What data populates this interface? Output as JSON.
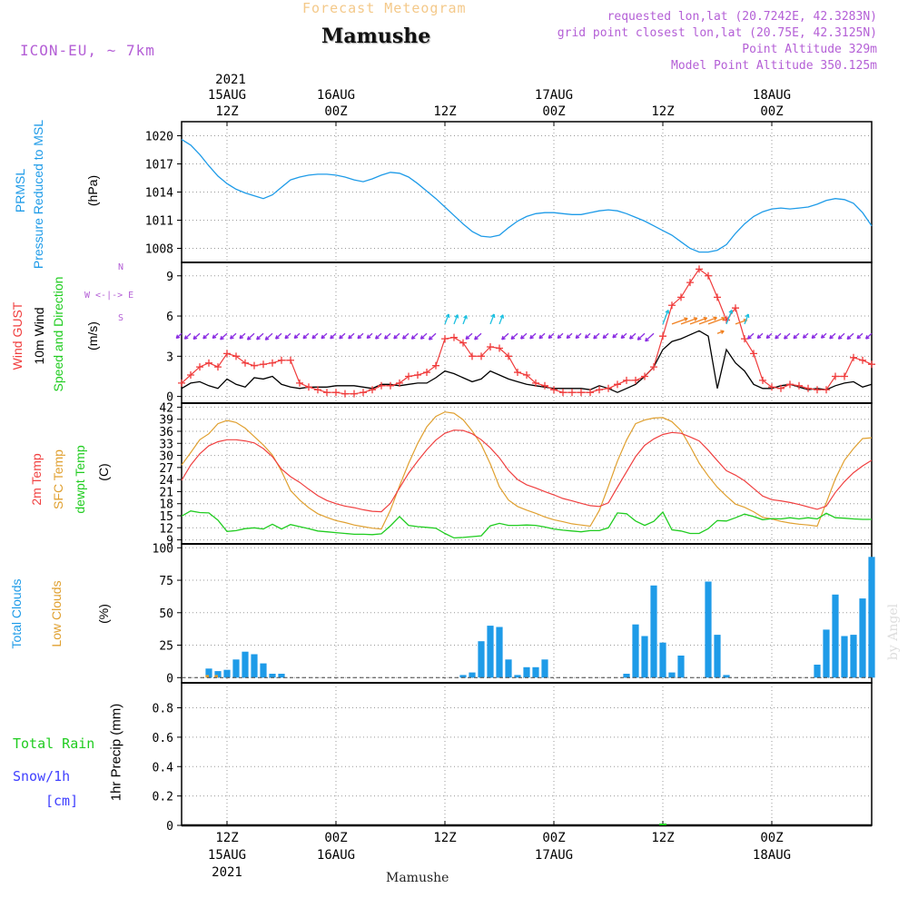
{
  "header": {
    "top_label": "Forecast Meteogram",
    "title": "Mamushe",
    "model": "ICON-EU, ~ 7km",
    "requested": "requested lon,lat (20.7242E, 42.3283N)",
    "closest": "grid point closest lon,lat (20.75E, 42.3125N)",
    "point_alt": "Point Altitude 329m",
    "model_alt": "Model Point Altitude 350.125m",
    "footer_title": "Mamushe",
    "watermark": "by Angel"
  },
  "time_axis": {
    "year": "2021",
    "ticks": [
      {
        "h": 12,
        "top": "15AUG",
        "bottom": "12Z"
      },
      {
        "h": 24,
        "top": "16AUG",
        "bottom": "00Z"
      },
      {
        "h": 36,
        "top": "",
        "bottom": "12Z"
      },
      {
        "h": 48,
        "top": "17AUG",
        "bottom": "00Z"
      },
      {
        "h": 60,
        "top": "",
        "bottom": "12Z"
      },
      {
        "h": 72,
        "top": "18AUG",
        "bottom": "00Z"
      }
    ],
    "bottom_ticks": [
      {
        "h": 12,
        "line1": "12Z",
        "line2": "15AUG",
        "line3": "2021"
      },
      {
        "h": 24,
        "line1": "00Z",
        "line2": "16AUG",
        "line3": ""
      },
      {
        "h": 36,
        "line1": "12Z",
        "line2": "",
        "line3": ""
      },
      {
        "h": 48,
        "line1": "00Z",
        "line2": "17AUG",
        "line3": ""
      },
      {
        "h": 60,
        "line1": "12Z",
        "line2": "",
        "line3": ""
      },
      {
        "h": 72,
        "line1": "00Z",
        "line2": "18AUG",
        "line3": ""
      }
    ],
    "hour_range": [
      7,
      83
    ]
  },
  "panel_labels": {
    "p1": [
      "PRMSL",
      "Pressure Reduced to MSL",
      "(hPa)"
    ],
    "p2": [
      "Wind GUST",
      "10m Wind",
      "Speed and Direction",
      "(m/s)"
    ],
    "p2_compass": [
      "N",
      "W <-|-> E",
      "S"
    ],
    "p3": [
      "2m Temp",
      "SFC Temp",
      "dewpt Temp",
      "(C)"
    ],
    "p4": [
      "Total Clouds",
      "Low Clouds",
      "(%)"
    ],
    "p5_left": [
      "Total Rain",
      "Snow/1h",
      "[cm]"
    ],
    "p5_axis": "1hr Precip (mm)"
  },
  "colors": {
    "pressure": "#1e9be8",
    "gust": "#f03c3c",
    "wind": "#000000",
    "t2m": "#f04040",
    "sfc": "#e0a030",
    "dewpt": "#20cc20",
    "clouds": "#1e9be8",
    "arrows_calm": "#8a2be2",
    "arrows_mid": "#1cc0e0",
    "arrows_strong": "#f08020",
    "rain": "#20cc20",
    "snow": "#4040ff"
  },
  "chart_data": [
    {
      "type": "line",
      "title": "PRMSL Pressure Reduced to MSL",
      "ylabel": "(hPa)",
      "yticks": [
        1008,
        1011,
        1014,
        1017,
        1020
      ],
      "ylim": [
        1006.5,
        1021.5
      ],
      "x": [
        7,
        8,
        9,
        10,
        11,
        12,
        13,
        14,
        15,
        16,
        17,
        18,
        19,
        20,
        21,
        22,
        23,
        24,
        25,
        26,
        27,
        28,
        29,
        30,
        31,
        32,
        33,
        34,
        35,
        36,
        37,
        38,
        39,
        40,
        41,
        42,
        43,
        44,
        45,
        46,
        47,
        48,
        49,
        50,
        51,
        52,
        53,
        54,
        55,
        56,
        57,
        58,
        59,
        60,
        61,
        62,
        63,
        64,
        65,
        66,
        67,
        68,
        69,
        70,
        71,
        72,
        73,
        74,
        75,
        76,
        77,
        78,
        79,
        80,
        81,
        82,
        83
      ],
      "series": [
        {
          "values": [
            1019.6,
            1019.0,
            1018.0,
            1016.8,
            1015.7,
            1014.9,
            1014.3,
            1013.9,
            1013.6,
            1013.3,
            1013.7,
            1014.5,
            1015.3,
            1015.6,
            1015.8,
            1015.9,
            1015.9,
            1015.8,
            1015.6,
            1015.3,
            1015.1,
            1015.4,
            1015.8,
            1016.1,
            1016.0,
            1015.6,
            1014.9,
            1014.1,
            1013.3,
            1012.4,
            1011.5,
            1010.6,
            1009.8,
            1009.3,
            1009.2,
            1009.4,
            1010.2,
            1010.9,
            1011.4,
            1011.7,
            1011.8,
            1011.8,
            1011.7,
            1011.6,
            1011.6,
            1011.8,
            1012.0,
            1012.1,
            1012.0,
            1011.7,
            1011.3,
            1010.9,
            1010.4,
            1009.9,
            1009.4,
            1008.7,
            1008.0,
            1007.6,
            1007.6,
            1007.8,
            1008.4,
            1009.6,
            1010.6,
            1011.4,
            1011.9,
            1012.2,
            1012.3,
            1012.2,
            1012.3,
            1012.4,
            1012.7,
            1013.1,
            1013.3,
            1013.2,
            1012.8,
            1011.8,
            1010.4
          ]
        }
      ]
    },
    {
      "type": "line",
      "title": "Wind GUST / 10m Wind Speed and Direction",
      "ylabel": "(m/s)",
      "yticks": [
        0,
        3,
        6,
        9
      ],
      "ylim": [
        -0.5,
        10
      ],
      "x": [
        7,
        8,
        9,
        10,
        11,
        12,
        13,
        14,
        15,
        16,
        17,
        18,
        19,
        20,
        21,
        22,
        23,
        24,
        25,
        26,
        27,
        28,
        29,
        30,
        31,
        32,
        33,
        34,
        35,
        36,
        37,
        38,
        39,
        40,
        41,
        42,
        43,
        44,
        45,
        46,
        47,
        48,
        49,
        50,
        51,
        52,
        53,
        54,
        55,
        56,
        57,
        58,
        59,
        60,
        61,
        62,
        63,
        64,
        65,
        66,
        67,
        68,
        69,
        70,
        71,
        72,
        73,
        74,
        75,
        76,
        77,
        78,
        79,
        80,
        81,
        82,
        83
      ],
      "series": [
        {
          "name": "Wind GUST",
          "values": [
            1.0,
            1.6,
            2.2,
            2.5,
            2.2,
            3.2,
            3.0,
            2.5,
            2.3,
            2.4,
            2.5,
            2.7,
            2.7,
            1.0,
            0.7,
            0.5,
            0.3,
            0.3,
            0.2,
            0.2,
            0.3,
            0.5,
            0.8,
            0.8,
            1.0,
            1.5,
            1.6,
            1.8,
            2.3,
            4.3,
            4.4,
            4.0,
            3.0,
            3.0,
            3.7,
            3.6,
            3.0,
            1.8,
            1.6,
            1.0,
            0.8,
            0.5,
            0.3,
            0.3,
            0.3,
            0.3,
            0.5,
            0.6,
            0.9,
            1.2,
            1.2,
            1.5,
            2.2,
            4.5,
            6.8,
            7.4,
            8.5,
            9.5,
            9.0,
            7.4,
            5.7,
            6.6,
            4.3,
            3.2,
            1.2,
            0.7,
            0.6,
            0.9,
            0.8,
            0.6,
            0.5,
            0.5,
            1.5,
            1.5,
            2.9,
            2.7,
            2.4
          ]
        },
        {
          "name": "10m Wind",
          "values": [
            0.6,
            1.0,
            1.1,
            0.8,
            0.6,
            1.3,
            0.9,
            0.7,
            1.4,
            1.3,
            1.5,
            0.9,
            0.7,
            0.6,
            0.7,
            0.7,
            0.7,
            0.8,
            0.8,
            0.8,
            0.7,
            0.6,
            0.9,
            0.9,
            0.8,
            0.9,
            1.0,
            1.0,
            1.4,
            1.9,
            1.7,
            1.4,
            1.1,
            1.3,
            1.9,
            1.6,
            1.3,
            1.1,
            0.9,
            0.8,
            0.7,
            0.6,
            0.6,
            0.6,
            0.6,
            0.5,
            0.8,
            0.6,
            0.3,
            0.6,
            0.9,
            1.5,
            2.2,
            3.5,
            4.1,
            4.3,
            4.6,
            4.9,
            4.5,
            0.6,
            3.5,
            2.5,
            1.9,
            0.9,
            0.6,
            0.6,
            0.8,
            0.9,
            0.7,
            0.5,
            0.6,
            0.5,
            0.8,
            1.0,
            1.1,
            0.7,
            0.9
          ]
        }
      ]
    },
    {
      "type": "line",
      "title": "2m Temp / SFC Temp / dewpt Temp",
      "ylabel": "(C)",
      "yticks": [
        9,
        12,
        15,
        18,
        21,
        24,
        27,
        30,
        33,
        36,
        39,
        42
      ],
      "ylim": [
        8,
        43
      ],
      "x": [
        7,
        8,
        9,
        10,
        11,
        12,
        13,
        14,
        15,
        16,
        17,
        18,
        19,
        20,
        21,
        22,
        23,
        24,
        25,
        26,
        27,
        28,
        29,
        30,
        31,
        32,
        33,
        34,
        35,
        36,
        37,
        38,
        39,
        40,
        41,
        42,
        43,
        44,
        45,
        46,
        47,
        48,
        49,
        50,
        51,
        52,
        53,
        54,
        55,
        56,
        57,
        58,
        59,
        60,
        61,
        62,
        63,
        64,
        65,
        66,
        67,
        68,
        69,
        70,
        71,
        72,
        73,
        74,
        75,
        76,
        77,
        78,
        79,
        80,
        81,
        82,
        83
      ],
      "series": [
        {
          "name": "2m Temp",
          "values": [
            23.8,
            27.6,
            30.4,
            32.4,
            33.4,
            33.9,
            33.9,
            33.6,
            33.1,
            31.7,
            29.7,
            26.6,
            24.7,
            23.3,
            21.6,
            20.0,
            18.8,
            18.0,
            17.4,
            17.0,
            16.5,
            16.1,
            16.0,
            18.1,
            21.9,
            25.6,
            28.6,
            31.4,
            33.8,
            35.5,
            36.3,
            36.2,
            35.4,
            33.9,
            31.9,
            29.4,
            26.3,
            24.0,
            22.7,
            21.9,
            21.0,
            20.2,
            19.3,
            18.7,
            18.1,
            17.5,
            17.3,
            18.2,
            22.1,
            25.9,
            29.7,
            32.5,
            34.1,
            35.2,
            35.7,
            35.5,
            34.6,
            33.6,
            31.3,
            28.7,
            26.2,
            25.1,
            23.7,
            21.8,
            19.9,
            19.0,
            18.7,
            18.3,
            17.8,
            17.2,
            16.6,
            17.4,
            20.8,
            23.5,
            25.7,
            27.4,
            28.8
          ]
        },
        {
          "name": "SFC Temp",
          "values": [
            27.6,
            30.7,
            33.9,
            35.4,
            37.9,
            38.7,
            38.2,
            36.8,
            34.7,
            32.6,
            30.1,
            26.1,
            21.3,
            18.9,
            17.0,
            15.5,
            14.6,
            13.8,
            13.3,
            12.7,
            12.3,
            11.9,
            11.7,
            16.4,
            22.4,
            28.0,
            33.0,
            37.1,
            39.7,
            40.8,
            40.5,
            38.9,
            36.1,
            32.7,
            27.9,
            22.2,
            18.9,
            17.3,
            16.4,
            15.6,
            14.7,
            14.0,
            13.5,
            13.0,
            12.7,
            12.4,
            16.3,
            22.3,
            28.6,
            33.8,
            37.9,
            38.8,
            39.3,
            39.4,
            38.4,
            36.2,
            32.3,
            28.1,
            24.9,
            22.1,
            19.9,
            17.9,
            17.1,
            16.0,
            14.6,
            14.2,
            13.6,
            13.2,
            12.9,
            12.7,
            12.4,
            18.2,
            24.2,
            28.8,
            31.7,
            34.2,
            34.4
          ]
        },
        {
          "name": "dewpt Temp",
          "values": [
            14.9,
            16.2,
            15.8,
            15.7,
            13.9,
            11.1,
            11.3,
            11.8,
            12.0,
            11.7,
            12.9,
            11.7,
            12.8,
            12.3,
            11.8,
            11.2,
            11.0,
            10.8,
            10.6,
            10.4,
            10.4,
            10.3,
            10.5,
            12.5,
            14.8,
            12.6,
            12.3,
            12.1,
            11.9,
            10.6,
            9.5,
            9.6,
            9.8,
            10.0,
            12.5,
            13.1,
            12.6,
            12.6,
            12.7,
            12.6,
            12.2,
            11.7,
            11.4,
            11.2,
            11.0,
            11.3,
            11.3,
            12.0,
            15.7,
            15.5,
            13.7,
            12.6,
            13.6,
            15.9,
            11.5,
            11.2,
            10.6,
            10.6,
            11.8,
            13.8,
            13.7,
            14.5,
            15.4,
            14.8,
            14.0,
            14.3,
            14.2,
            14.5,
            14.2,
            14.5,
            14.2,
            15.6,
            14.5,
            14.4,
            14.2,
            14.1,
            14.1
          ]
        }
      ]
    },
    {
      "type": "bar",
      "title": "Total Clouds / Low Clouds",
      "ylabel": "(%)",
      "yticks": [
        0,
        25,
        50,
        75,
        100
      ],
      "ylim": [
        -4,
        103
      ],
      "x": [
        7,
        8,
        9,
        10,
        11,
        12,
        13,
        14,
        15,
        16,
        17,
        18,
        19,
        20,
        21,
        22,
        23,
        24,
        25,
        26,
        27,
        28,
        29,
        30,
        31,
        32,
        33,
        34,
        35,
        36,
        37,
        38,
        39,
        40,
        41,
        42,
        43,
        44,
        45,
        46,
        47,
        48,
        49,
        50,
        51,
        52,
        53,
        54,
        55,
        56,
        57,
        58,
        59,
        60,
        61,
        62,
        63,
        64,
        65,
        66,
        67,
        68,
        69,
        70,
        71,
        72,
        73,
        74,
        75,
        76,
        77,
        78,
        79,
        80,
        81,
        82,
        83
      ],
      "series": [
        {
          "name": "Total Clouds",
          "values": [
            0,
            0,
            0,
            7,
            5,
            6,
            14,
            20,
            18,
            11,
            3,
            3,
            0,
            0,
            0,
            0,
            0,
            0,
            0,
            0,
            0,
            0,
            0,
            0,
            0,
            0,
            0,
            0,
            0,
            0,
            0,
            2,
            4,
            28,
            40,
            39,
            14,
            2,
            8,
            8,
            14,
            0,
            0,
            0,
            0,
            0,
            0,
            0,
            0,
            3,
            41,
            32,
            71,
            27,
            4,
            17,
            0,
            0,
            74,
            33,
            2,
            0,
            0,
            0,
            0,
            0,
            0,
            0,
            0,
            0,
            10,
            37,
            64,
            32,
            33,
            61,
            93
          ]
        },
        {
          "name": "Low Clouds",
          "values": [
            0,
            0,
            0,
            2,
            2,
            0,
            0,
            0,
            0,
            0,
            0,
            0,
            0,
            0,
            0,
            0,
            0,
            0,
            0,
            0,
            0,
            0,
            0,
            0,
            0,
            0,
            0,
            0,
            0,
            0,
            0,
            0,
            0,
            0,
            0,
            0,
            0,
            0,
            0,
            0,
            0,
            0,
            0,
            0,
            0,
            0,
            0,
            0,
            0,
            0,
            0,
            0,
            0,
            0,
            0,
            0,
            0,
            0,
            0,
            0,
            0,
            0,
            0,
            0,
            0,
            0,
            0,
            0,
            0,
            0,
            0,
            0,
            0,
            0,
            0,
            0,
            0
          ]
        }
      ]
    },
    {
      "type": "bar",
      "title": "1hr Precip",
      "ylabel": "1hr Precip (mm)",
      "yticks": [
        0,
        0.2,
        0.4,
        0.6,
        0.8
      ],
      "ylim": [
        0,
        0.97
      ],
      "x": [
        60
      ],
      "series": [
        {
          "name": "Total Rain",
          "values": [
            0.005
          ]
        }
      ]
    }
  ]
}
